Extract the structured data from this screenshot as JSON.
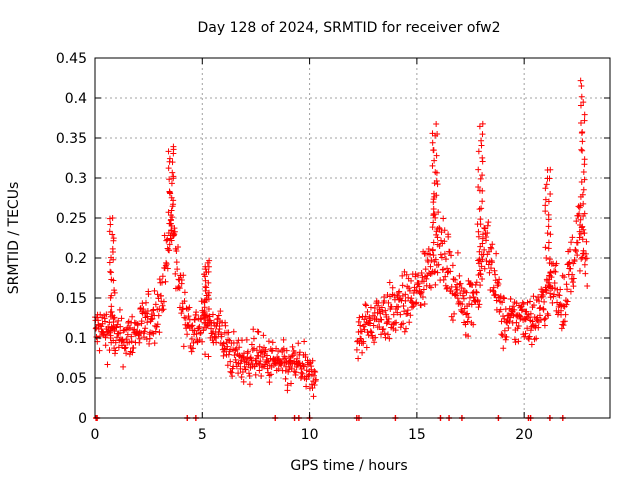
{
  "chart_data": {
    "type": "scatter",
    "title": "Day 128 of 2024, SRMTID for receiver ofw2",
    "xlabel": "GPS time / hours",
    "ylabel": "SRMTID / TECUs",
    "xlim": [
      0,
      24
    ],
    "ylim": [
      0,
      0.45
    ],
    "xticks": [
      0,
      5,
      10,
      15,
      20
    ],
    "xtick_labels": [
      "0",
      "5",
      "10",
      "15",
      "20"
    ],
    "yticks": [
      0,
      0.05,
      0.1,
      0.15,
      0.2,
      0.25,
      0.3,
      0.35,
      0.4,
      0.45
    ],
    "ytick_labels": [
      "0",
      "0.05",
      "0.1",
      "0.15",
      "0.2",
      "0.25",
      "0.3",
      "0.35",
      "0.4",
      "0.45"
    ],
    "grid": true,
    "marker": "+",
    "color": "#ff0000",
    "data_gap_hours": [
      10.3,
      12.2
    ],
    "trend": [
      [
        0.0,
        0.11
      ],
      [
        0.5,
        0.11
      ],
      [
        1.0,
        0.1
      ],
      [
        1.5,
        0.1
      ],
      [
        2.0,
        0.11
      ],
      [
        2.5,
        0.12
      ],
      [
        3.0,
        0.14
      ],
      [
        3.3,
        0.19
      ],
      [
        3.6,
        0.24
      ],
      [
        3.9,
        0.17
      ],
      [
        4.3,
        0.12
      ],
      [
        4.8,
        0.11
      ],
      [
        5.3,
        0.12
      ],
      [
        5.8,
        0.11
      ],
      [
        6.3,
        0.08
      ],
      [
        7.0,
        0.07
      ],
      [
        7.5,
        0.08
      ],
      [
        8.0,
        0.07
      ],
      [
        8.5,
        0.07
      ],
      [
        9.0,
        0.06
      ],
      [
        9.5,
        0.07
      ],
      [
        10.0,
        0.05
      ],
      [
        12.3,
        0.1
      ],
      [
        12.8,
        0.12
      ],
      [
        13.3,
        0.13
      ],
      [
        13.8,
        0.13
      ],
      [
        14.3,
        0.14
      ],
      [
        14.8,
        0.15
      ],
      [
        15.3,
        0.17
      ],
      [
        15.8,
        0.22
      ],
      [
        16.3,
        0.2
      ],
      [
        16.8,
        0.16
      ],
      [
        17.3,
        0.14
      ],
      [
        17.8,
        0.16
      ],
      [
        18.2,
        0.22
      ],
      [
        18.6,
        0.18
      ],
      [
        19.0,
        0.12
      ],
      [
        19.5,
        0.12
      ],
      [
        20.0,
        0.13
      ],
      [
        20.5,
        0.12
      ],
      [
        21.0,
        0.15
      ],
      [
        21.4,
        0.17
      ],
      [
        21.8,
        0.14
      ],
      [
        22.2,
        0.19
      ],
      [
        22.6,
        0.24
      ],
      [
        22.9,
        0.18
      ]
    ],
    "peaks": [
      {
        "x": 0.8,
        "y": 0.25
      },
      {
        "x": 3.55,
        "y": 0.34
      },
      {
        "x": 5.2,
        "y": 0.2
      },
      {
        "x": 15.85,
        "y": 0.365
      },
      {
        "x": 17.95,
        "y": 0.37
      },
      {
        "x": 21.1,
        "y": 0.315
      },
      {
        "x": 22.7,
        "y": 0.42
      }
    ],
    "zero_markers_x": [
      0.05,
      0.1,
      4.3,
      4.7,
      8.4,
      9.3,
      9.5,
      10.0,
      12.2,
      12.3,
      14.0,
      16.1,
      16.5,
      17.1,
      18.8,
      20.2,
      20.3,
      21.2,
      21.8
    ]
  }
}
